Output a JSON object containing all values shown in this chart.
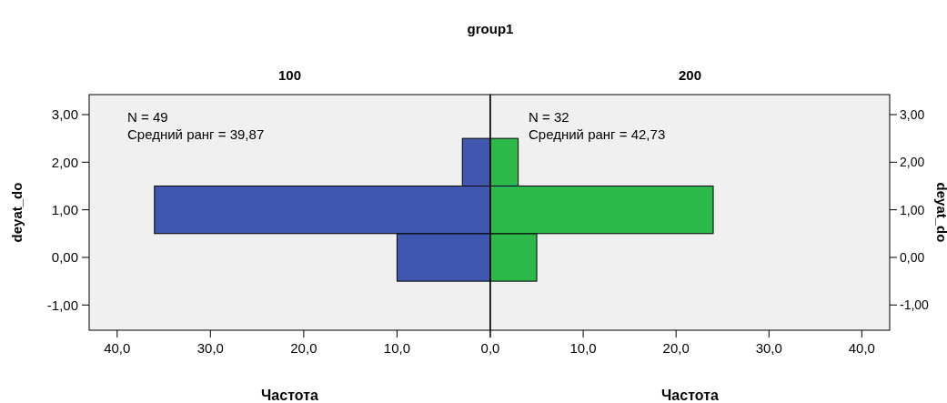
{
  "chart_data": [
    {
      "type": "histogram",
      "orientation": "horizontal",
      "title": "group1",
      "subtitle": "100",
      "xlabel": "Частота",
      "ylabel": "deyat_do",
      "annotations": [
        "N = 49",
        "Средний ранг = 39,87"
      ],
      "bins": [
        -0.5,
        0.5,
        1.5,
        2.5
      ],
      "values": [
        10,
        36,
        3
      ],
      "color": "#3f57ae",
      "xlim": [
        43,
        0
      ],
      "xticks": [
        {
          "value": 40,
          "label": "40,0"
        },
        {
          "value": 30,
          "label": "30,0"
        },
        {
          "value": 20,
          "label": "20,0"
        },
        {
          "value": 10,
          "label": "10,0"
        },
        {
          "value": 0,
          "label": "0,0"
        }
      ],
      "ylim": [
        -1.53,
        3.42
      ],
      "yticks": [
        {
          "value": -1,
          "label": "-1,00"
        },
        {
          "value": 0,
          "label": "0,00"
        },
        {
          "value": 1,
          "label": "1,00"
        },
        {
          "value": 2,
          "label": "2,00"
        },
        {
          "value": 3,
          "label": "3,00"
        }
      ],
      "grid": false,
      "legend": false
    },
    {
      "type": "histogram",
      "orientation": "horizontal",
      "subtitle": "200",
      "xlabel": "Частота",
      "ylabel": "deyat_do",
      "annotations": [
        "N = 32",
        "Средний ранг = 42,73"
      ],
      "bins": [
        -0.5,
        0.5,
        1.5,
        2.5
      ],
      "values": [
        5,
        24,
        3
      ],
      "color": "#2db84a",
      "xlim": [
        0,
        43
      ],
      "xticks": [
        {
          "value": 0,
          "label": null
        },
        {
          "value": 10,
          "label": "10,0"
        },
        {
          "value": 20,
          "label": "20,0"
        },
        {
          "value": 30,
          "label": "30,0"
        },
        {
          "value": 40,
          "label": "40,0"
        }
      ],
      "ylim": [
        -1.53,
        3.42
      ],
      "yticks": [
        {
          "value": -1,
          "label": "-1,00"
        },
        {
          "value": 0,
          "label": "0,00"
        },
        {
          "value": 1,
          "label": "1,00"
        },
        {
          "value": 2,
          "label": "2,00"
        },
        {
          "value": 3,
          "label": "3,00"
        }
      ],
      "grid": false,
      "legend": false
    }
  ]
}
